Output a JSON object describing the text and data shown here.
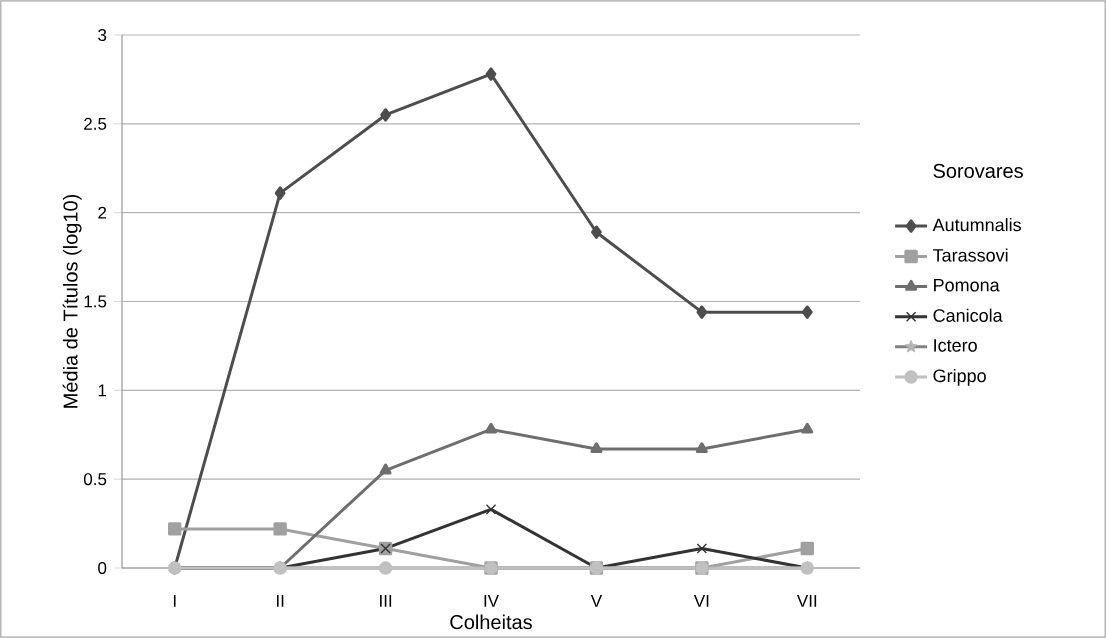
{
  "chart_data": {
    "type": "line",
    "xlabel": "Colheitas",
    "ylabel": "Média de Títulos (log10)",
    "legend_title": "Sorovares",
    "categories": [
      "I",
      "II",
      "III",
      "IV",
      "V",
      "VI",
      "VII"
    ],
    "series": [
      {
        "name": "Autumnalis",
        "color": "#4d4d4d",
        "marker": "diamond",
        "values": [
          0,
          2.11,
          2.55,
          2.78,
          1.89,
          1.44,
          1.44
        ]
      },
      {
        "name": "Tarassovi",
        "color": "#a0a0a0",
        "marker": "square",
        "values": [
          0.22,
          0.22,
          0.11,
          0,
          0,
          0,
          0.11
        ]
      },
      {
        "name": "Pomona",
        "color": "#6e6e6e",
        "marker": "triangle",
        "values": [
          0,
          0,
          0.55,
          0.78,
          0.67,
          0.67,
          0.78
        ]
      },
      {
        "name": "Canicola",
        "color": "#333333",
        "marker": "cross",
        "values": [
          0,
          0,
          0.11,
          0.33,
          0,
          0.11,
          0
        ]
      },
      {
        "name": "Ictero",
        "color": "#808080",
        "marker": "star",
        "values": [
          0,
          0,
          0,
          0,
          0,
          0,
          0
        ]
      },
      {
        "name": "Grippo",
        "color": "#c0c0c0",
        "marker": "circle",
        "values": [
          0,
          0,
          0,
          0,
          0,
          0,
          0
        ]
      }
    ],
    "ylim": [
      0,
      3
    ],
    "yticks": [
      0,
      0.5,
      1,
      1.5,
      2,
      2.5,
      3
    ],
    "grid": "y",
    "legend": "right",
    "line_style": "solid"
  }
}
